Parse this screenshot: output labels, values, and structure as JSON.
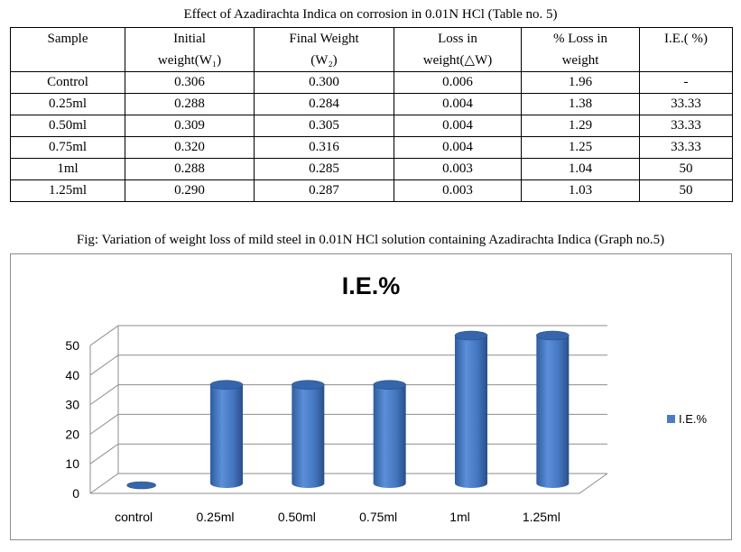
{
  "table_caption": "Effect of Azadirachta Indica on corrosion in 0.01N HCl (Table no. 5)",
  "table": {
    "headers": [
      [
        "Sample"
      ],
      [
        "Initial",
        "weight(W₁)"
      ],
      [
        "Final Weight",
        "(W₂)"
      ],
      [
        "Loss in",
        "weight(△W)"
      ],
      [
        "% Loss in",
        "weight"
      ],
      [
        "I.E.( %)"
      ]
    ],
    "rows": [
      [
        "Control",
        "0.306",
        "0.300",
        "0.006",
        "1.96",
        "-"
      ],
      [
        "0.25ml",
        "0.288",
        "0.284",
        "0.004",
        "1.38",
        "33.33"
      ],
      [
        "0.50ml",
        "0.309",
        "0.305",
        "0.004",
        "1.29",
        "33.33"
      ],
      [
        "0.75ml",
        "0.320",
        "0.316",
        "0.004",
        "1.25",
        "33.33"
      ],
      [
        "1ml",
        "0.288",
        "0.285",
        "0.003",
        "1.04",
        "50"
      ],
      [
        "1.25ml",
        "0.290",
        "0.287",
        "0.003",
        "1.03",
        "50"
      ]
    ]
  },
  "figure_caption": "Fig: Variation of weight loss of mild steel in 0.01N HCl solution containing Azadirachta Indica (Graph no.5)",
  "chart_data": {
    "type": "bar",
    "title": "I.E.%",
    "xlabel": "",
    "ylabel": "",
    "categories": [
      "control",
      "0.25ml",
      "0.50ml",
      "0.75ml",
      "1ml",
      "1.25ml"
    ],
    "series": [
      {
        "name": "I.E.%",
        "values": [
          0,
          33.33,
          33.33,
          33.33,
          50,
          50
        ]
      }
    ],
    "ylim": [
      0,
      50
    ],
    "yticks": [
      0,
      10,
      20,
      30,
      40,
      50
    ],
    "grid": true,
    "legend": "right",
    "bar_style": "3d-cylinder",
    "colors": {
      "bar": "#4a7cc6",
      "bar_dark": "#2c528f",
      "bar_top": "#3566ad",
      "grid": "#8c8c8c"
    }
  }
}
